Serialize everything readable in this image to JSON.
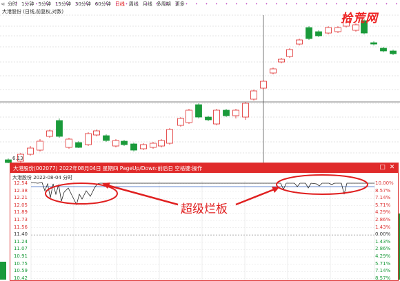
{
  "toolbar": {
    "tabs": [
      "分时",
      "1分钟",
      "5分钟",
      "15分钟",
      "30分钟",
      "60分钟",
      "日线",
      "周线",
      "月线",
      "多周期",
      "更多"
    ],
    "active_index": 6
  },
  "stock_label": "大港股份 (日线,前复权,对数)",
  "watermark": "拾荒网",
  "price_flag": "6.13",
  "popup": {
    "title": "大港股份(002077) 2022年08月04日 星期四 PageUp/Down:前后日 空格键:操作",
    "sub_label": "大港股份  2022-08-04 分时",
    "restore_icon": "□",
    "close_icon": "✕",
    "y_left": [
      "12.54",
      "12.38",
      "12.21",
      "12.05",
      "11.89",
      "11.73",
      "11.56",
      "11.40",
      "11.24",
      "11.07",
      "10.91",
      "10.75",
      "10.59",
      "10.42"
    ],
    "y_right": [
      "10.00%",
      "8.57%",
      "7.14%",
      "5.71%",
      "4.29%",
      "2.86%",
      "1.43%",
      "0.00%",
      "1.43%",
      "2.86%",
      "4.29%",
      "5.71%",
      "7.14%",
      "8.57%"
    ]
  },
  "annotation": "超级烂板",
  "colors": {
    "up": "#e02a2a",
    "down": "#1a9a3a",
    "title_bar": "#e02a2a"
  }
}
